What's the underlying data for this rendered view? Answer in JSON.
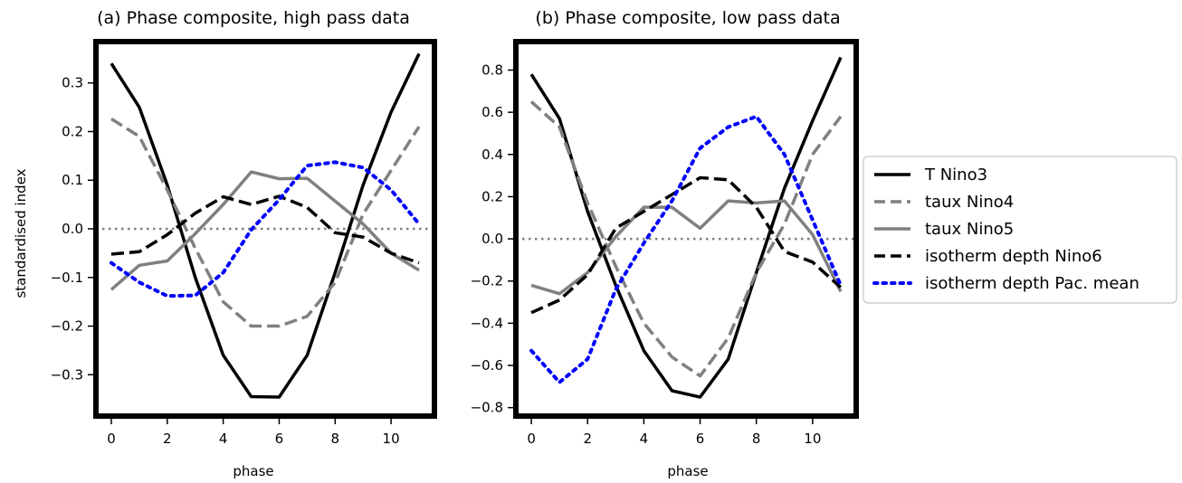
{
  "chart_data": [
    {
      "type": "line",
      "title": "(a) Phase composite, high pass data",
      "xlabel": "phase",
      "ylabel": "standardised index",
      "xlim": [
        -0.55,
        11.55
      ],
      "ylim": [
        -0.385,
        0.385
      ],
      "xticks": [
        0,
        2,
        4,
        6,
        8,
        10
      ],
      "xtick_labels": [
        "0",
        "2",
        "4",
        "6",
        "8",
        "10"
      ],
      "yticks": [
        -0.3,
        -0.2,
        -0.1,
        0.0,
        0.1,
        0.2,
        0.3
      ],
      "ytick_labels": [
        "−0.3",
        "−0.2",
        "−0.1",
        "0.0",
        "0.1",
        "0.2",
        "0.3"
      ],
      "x": [
        0,
        1,
        2,
        3,
        4,
        5,
        6,
        7,
        8,
        9,
        10,
        11
      ],
      "zero_line": 0.0,
      "series": [
        {
          "name": "T Nino3",
          "values": [
            0.34,
            0.25,
            0.09,
            -0.1,
            -0.26,
            -0.345,
            -0.346,
            -0.26,
            -0.09,
            0.09,
            0.24,
            0.36
          ]
        },
        {
          "name": "taux Nino4",
          "values": [
            0.226,
            0.19,
            0.08,
            -0.04,
            -0.15,
            -0.2,
            -0.2,
            -0.18,
            -0.11,
            0.03,
            0.12,
            0.21
          ]
        },
        {
          "name": "taux Nino5",
          "values": [
            -0.125,
            -0.075,
            -0.066,
            -0.01,
            0.05,
            0.117,
            0.103,
            0.104,
            0.057,
            0.01,
            -0.05,
            -0.085
          ]
        },
        {
          "name": "isotherm depth Nino6",
          "values": [
            -0.052,
            -0.047,
            -0.012,
            0.032,
            0.066,
            0.05,
            0.067,
            0.044,
            -0.008,
            -0.017,
            -0.05,
            -0.07
          ]
        },
        {
          "name": "isotherm depth Pac. mean",
          "values": [
            -0.07,
            -0.11,
            -0.138,
            -0.137,
            -0.09,
            -0.002,
            0.06,
            0.13,
            0.137,
            0.126,
            0.08,
            0.01
          ]
        }
      ]
    },
    {
      "type": "line",
      "title": "(b) Phase composite, low pass data",
      "xlabel": "phase",
      "ylabel": "",
      "xlim": [
        -0.55,
        11.55
      ],
      "ylim": [
        -0.84,
        0.935
      ],
      "xticks": [
        0,
        2,
        4,
        6,
        8,
        10
      ],
      "xtick_labels": [
        "0",
        "2",
        "4",
        "6",
        "8",
        "10"
      ],
      "yticks": [
        -0.8,
        -0.6,
        -0.4,
        -0.2,
        0.0,
        0.2,
        0.4,
        0.6,
        0.8
      ],
      "ytick_labels": [
        "−0.8",
        "−0.6",
        "−0.4",
        "−0.2",
        "0.0",
        "0.2",
        "0.4",
        "0.6",
        "0.8"
      ],
      "x": [
        0,
        1,
        2,
        3,
        4,
        5,
        6,
        7,
        8,
        9,
        10,
        11
      ],
      "zero_line": 0.0,
      "series": [
        {
          "name": "T Nino3",
          "values": [
            0.78,
            0.57,
            0.13,
            -0.22,
            -0.53,
            -0.72,
            -0.75,
            -0.57,
            -0.16,
            0.24,
            0.56,
            0.86
          ]
        },
        {
          "name": "taux Nino4",
          "values": [
            0.65,
            0.53,
            0.17,
            -0.13,
            -0.4,
            -0.56,
            -0.65,
            -0.47,
            -0.16,
            0.07,
            0.4,
            0.58
          ]
        },
        {
          "name": "taux Nino5",
          "values": [
            -0.22,
            -0.26,
            -0.16,
            0.01,
            0.15,
            0.15,
            0.05,
            0.18,
            0.17,
            0.18,
            0.02,
            -0.25
          ]
        },
        {
          "name": "isotherm depth Nino6",
          "values": [
            -0.35,
            -0.29,
            -0.17,
            0.05,
            0.13,
            0.21,
            0.29,
            0.28,
            0.15,
            -0.06,
            -0.11,
            -0.23
          ]
        },
        {
          "name": "isotherm depth Pac. mean",
          "values": [
            -0.53,
            -0.68,
            -0.57,
            -0.24,
            -0.02,
            0.18,
            0.43,
            0.53,
            0.58,
            0.4,
            0.09,
            -0.22
          ]
        }
      ]
    }
  ],
  "legend": {
    "placement": "right",
    "entries": [
      {
        "label": "T Nino3",
        "color": "#000000",
        "style": "solid"
      },
      {
        "label": "taux Nino4",
        "color": "#808080",
        "style": "dashed"
      },
      {
        "label": "taux Nino5",
        "color": "#808080",
        "style": "solid"
      },
      {
        "label": "isotherm depth Nino6",
        "color": "#000000",
        "style": "dashed"
      },
      {
        "label": "isotherm depth Pac. mean",
        "color": "#0000ff",
        "style": "dotted"
      }
    ]
  },
  "colors": {
    "black": "#000000",
    "gray": "#808080",
    "blue": "#0000ff",
    "zero_line": "#808080"
  }
}
